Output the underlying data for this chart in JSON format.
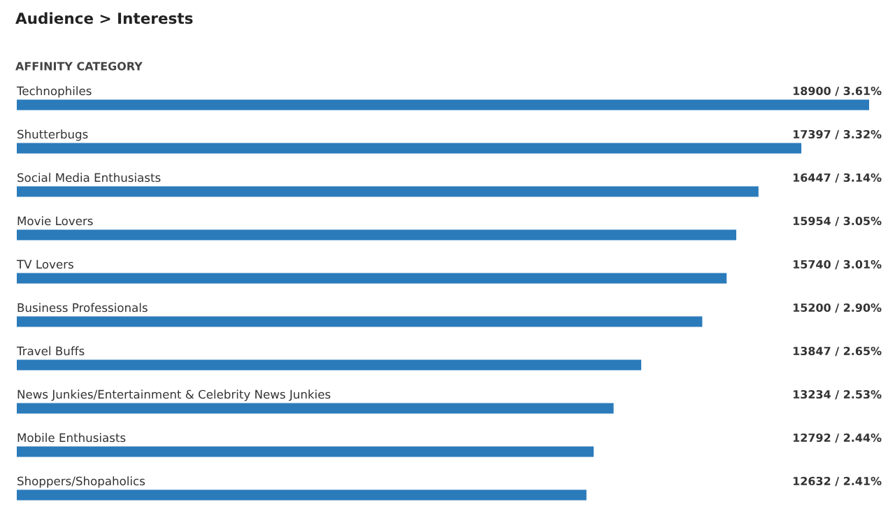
{
  "chart_data": {
    "type": "bar",
    "orientation": "horizontal",
    "title": "Audience > Interests",
    "subtitle": "AFFINITY CATEGORY",
    "categories": [
      "Technophiles",
      "Shutterbugs",
      "Social Media Enthusiasts",
      "Movie Lovers",
      "TV Lovers",
      "Business Professionals",
      "Travel Buffs",
      "News Junkies/Entertainment & Celebrity News Junkies",
      "Mobile Enthusiasts",
      "Shoppers/Shopaholics"
    ],
    "values": [
      18900,
      17397,
      16447,
      15954,
      15740,
      15200,
      13847,
      13234,
      12792,
      12632
    ],
    "value_labels": [
      "18900 / 3.61%",
      "17397 / 3.32%",
      "16447 / 3.14%",
      "15954 / 3.05%",
      "15740 / 3.01%",
      "15200 / 2.90%",
      "13847 / 2.65%",
      "13234 / 2.53%",
      "12792 / 2.44%",
      "12632 / 2.41%"
    ],
    "color": "#2b7bbb",
    "tick_labels": false,
    "grid": false,
    "legend": false
  }
}
